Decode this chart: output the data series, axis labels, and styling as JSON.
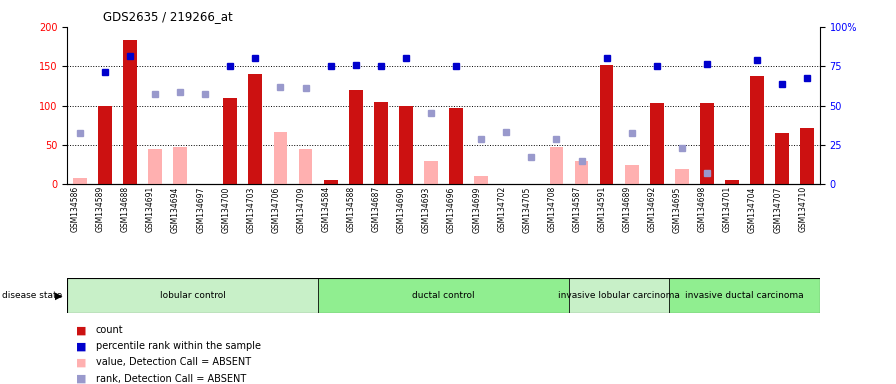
{
  "title": "GDS2635 / 219266_at",
  "samples": [
    "GSM134586",
    "GSM134589",
    "GSM134688",
    "GSM134691",
    "GSM134694",
    "GSM134697",
    "GSM134700",
    "GSM134703",
    "GSM134706",
    "GSM134709",
    "GSM134584",
    "GSM134588",
    "GSM134687",
    "GSM134690",
    "GSM134693",
    "GSM134696",
    "GSM134699",
    "GSM134702",
    "GSM134705",
    "GSM134708",
    "GSM134587",
    "GSM134591",
    "GSM134689",
    "GSM134692",
    "GSM134695",
    "GSM134698",
    "GSM134701",
    "GSM134704",
    "GSM134707",
    "GSM134710"
  ],
  "count_present": [
    null,
    100,
    183,
    null,
    null,
    null,
    110,
    140,
    null,
    null,
    5,
    120,
    105,
    100,
    null,
    97,
    null,
    null,
    null,
    null,
    null,
    152,
    null,
    103,
    null,
    103,
    5,
    138,
    65,
    72
  ],
  "value_absent": [
    8,
    null,
    null,
    45,
    47,
    null,
    null,
    null,
    67,
    45,
    null,
    null,
    null,
    null,
    30,
    null,
    11,
    null,
    null,
    48,
    30,
    null,
    25,
    null,
    20,
    null,
    null,
    null,
    null,
    null
  ],
  "rank_present": [
    null,
    143,
    163,
    null,
    null,
    null,
    150,
    160,
    null,
    null,
    150,
    152,
    150,
    160,
    null,
    150,
    null,
    null,
    null,
    null,
    null,
    160,
    null,
    150,
    null,
    153,
    null,
    158,
    128,
    135
  ],
  "rank_absent": [
    65,
    null,
    null,
    115,
    117,
    115,
    null,
    null,
    123,
    122,
    null,
    null,
    null,
    null,
    90,
    null,
    58,
    67,
    35,
    58,
    30,
    null,
    65,
    null,
    46,
    14,
    null,
    null,
    null,
    null
  ],
  "group_colors": [
    "#c8f0c8",
    "#90ee90",
    "#c8f0c8",
    "#90ee90"
  ],
  "group_labels": [
    "lobular control",
    "ductal control",
    "invasive lobular carcinoma",
    "invasive ductal carcinoma"
  ],
  "group_ranges": [
    [
      0,
      10
    ],
    [
      10,
      20
    ],
    [
      20,
      24
    ],
    [
      24,
      30
    ]
  ],
  "bar_color_present": "#cc1111",
  "bar_color_absent": "#ffb0b0",
  "rank_color_present": "#0000cc",
  "rank_color_absent": "#9999cc",
  "bar_width": 0.55,
  "ylim_left": [
    0,
    200
  ],
  "ylim_right": [
    0,
    100
  ],
  "yticks_left": [
    0,
    50,
    100,
    150,
    200
  ],
  "yticks_right": [
    0,
    25,
    50,
    75,
    100
  ]
}
